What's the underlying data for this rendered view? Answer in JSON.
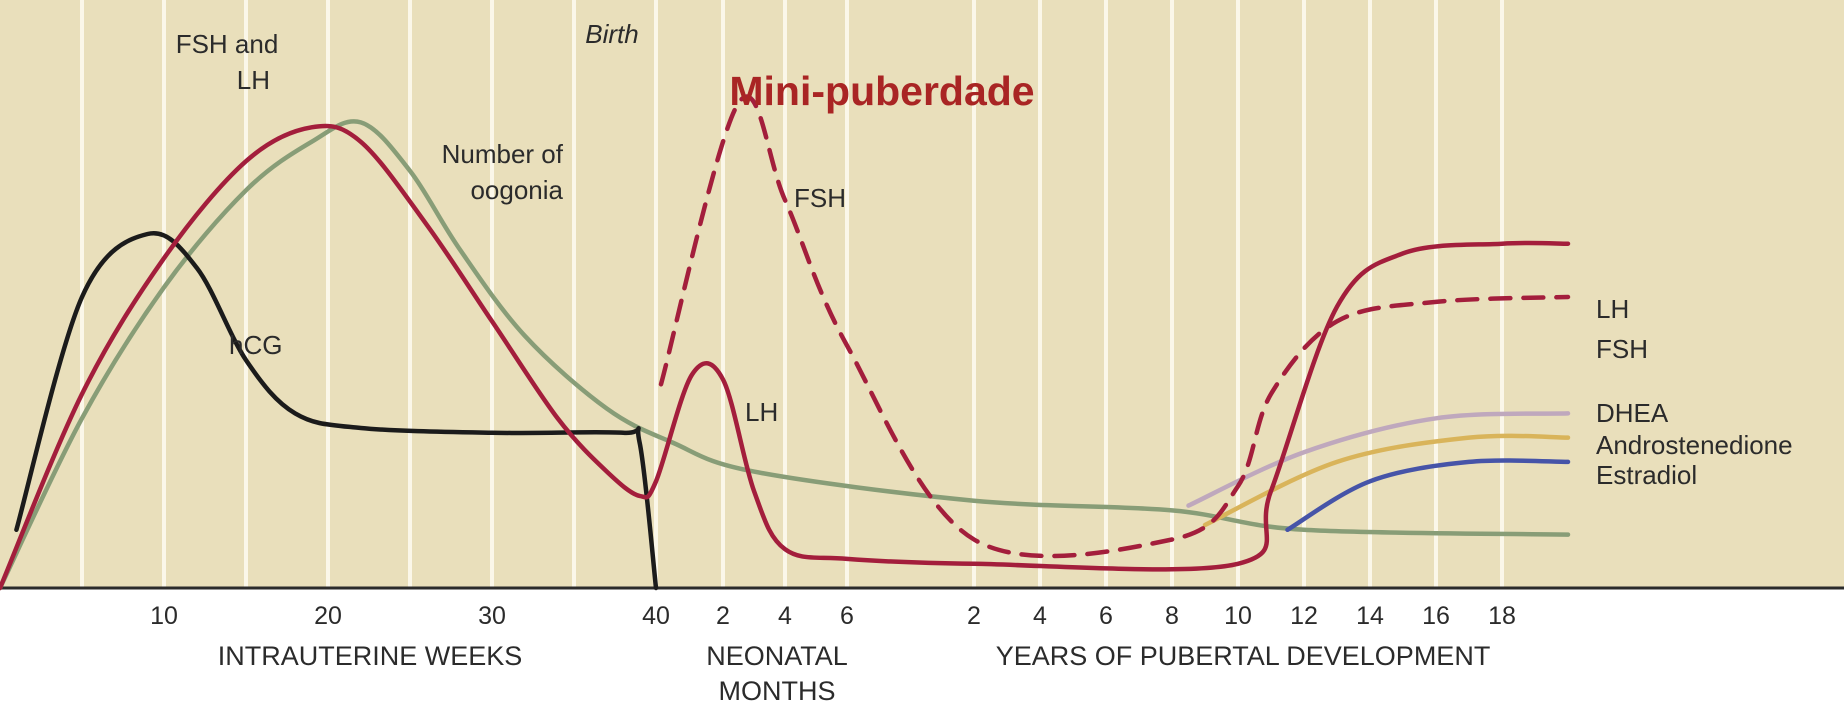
{
  "colors": {
    "background": "#e9dfbb",
    "gridline": "#fbf7e9",
    "hCG": "#1b1b1b",
    "FSH_and_LH": "#a31e3c",
    "oogonia": "#889d77",
    "DHEA": "#bfa8bd",
    "Androstenedione": "#d9b45a",
    "Estradiol": "#4654a8",
    "headline": "#a92524"
  },
  "headline": "Mini-puberdade",
  "annotations": {
    "birth": "Birth",
    "fsh_and_lh_line1": "FSH and",
    "fsh_and_lh_line2": "LH",
    "oogonia_line1": "Number of",
    "oogonia_line2": "oogonia",
    "hcg": "hCG",
    "neonatal_fsh": "FSH",
    "neonatal_lh": "LH"
  },
  "chart_data": {
    "type": "line",
    "y_axis": "unlabeled relative levels (approx. 0–100)",
    "grid": "vertical gridlines",
    "legend": "series labels at right end of lines",
    "sections": [
      {
        "name": "INTRAUTERINE WEEKS",
        "ticks": [
          "10",
          "20",
          "30",
          "40"
        ]
      },
      {
        "name_lines": [
          "NEONATAL",
          "MONTHS"
        ],
        "ticks": [
          "2",
          "4",
          "6"
        ]
      },
      {
        "name": "YEARS OF PUBERTAL DEVELOPMENT",
        "ticks": [
          "2",
          "4",
          "6",
          "8",
          "10",
          "12",
          "14",
          "16",
          "18"
        ]
      }
    ],
    "series": [
      {
        "name": "hCG",
        "style": "solid",
        "points": [
          [
            "w 1",
            12
          ],
          [
            "w 5",
            60
          ],
          [
            "w 9",
            73
          ],
          [
            "w 12",
            66
          ],
          [
            "w 15",
            47
          ],
          [
            "w 18",
            36
          ],
          [
            "w 22",
            33
          ],
          [
            "w 30",
            32
          ],
          [
            "w 38",
            32
          ],
          [
            "w 39",
            30
          ],
          [
            "w 40",
            0
          ]
        ]
      },
      {
        "name": "FSH and LH",
        "style": "solid",
        "points": [
          [
            "w 0",
            0
          ],
          [
            "w 5",
            40
          ],
          [
            "w 10",
            68
          ],
          [
            "w 15",
            88
          ],
          [
            "w 19",
            95
          ],
          [
            "w 22",
            92
          ],
          [
            "w 26",
            75
          ],
          [
            "w 30",
            55
          ],
          [
            "w 34",
            35
          ],
          [
            "w 37",
            24
          ],
          [
            "w 39",
            19
          ],
          [
            "w 40",
            22
          ],
          [
            "m 1",
            44
          ],
          [
            "m 2",
            43
          ],
          [
            "m 3",
            20
          ],
          [
            "m 4",
            8
          ],
          [
            "m 6",
            6
          ],
          [
            "y 2",
            5
          ],
          [
            "y 10",
            5
          ],
          [
            "y 11",
            20
          ],
          [
            "y 13",
            58
          ],
          [
            "y 15",
            69
          ],
          [
            "y 18",
            71
          ],
          [
            "y 20",
            71
          ]
        ]
      },
      {
        "name": "Number of oogonia",
        "style": "solid",
        "points": [
          [
            "w 0",
            0
          ],
          [
            "w 5",
            35
          ],
          [
            "w 10",
            62
          ],
          [
            "w 15",
            82
          ],
          [
            "w 19",
            92
          ],
          [
            "w 22",
            96
          ],
          [
            "w 25",
            86
          ],
          [
            "w 28",
            70
          ],
          [
            "w 32",
            52
          ],
          [
            "w 37",
            37
          ],
          [
            "w 41",
            30
          ],
          [
            "m 3",
            24
          ],
          [
            "y 2",
            18
          ],
          [
            "y 8",
            16
          ],
          [
            "y 12",
            12
          ],
          [
            "y 20",
            11
          ]
        ]
      },
      {
        "name": "FSH",
        "style": "dashed",
        "points": [
          [
            "m 0",
            42
          ],
          [
            "m 2.5",
            100
          ],
          [
            "m 4",
            80
          ],
          [
            "m 6",
            50
          ],
          [
            "y 2",
            10
          ],
          [
            "y 8",
            10
          ],
          [
            "y 10",
            21
          ],
          [
            "y 11",
            40
          ],
          [
            "y 13",
            55
          ],
          [
            "y 16",
            59
          ],
          [
            "y 20",
            60
          ]
        ]
      },
      {
        "name": "DHEA",
        "style": "solid",
        "points": [
          [
            "y 8.5",
            17
          ],
          [
            "y 12",
            28
          ],
          [
            "y 16",
            35
          ],
          [
            "y 20",
            36
          ]
        ]
      },
      {
        "name": "Androstenedione",
        "style": "solid",
        "points": [
          [
            "y 9",
            13
          ],
          [
            "y 13",
            26
          ],
          [
            "y 17",
            31
          ],
          [
            "y 20",
            31
          ]
        ]
      },
      {
        "name": "Estradiol",
        "style": "solid",
        "points": [
          [
            "y 11.5",
            12
          ],
          [
            "y 14",
            22
          ],
          [
            "y 17",
            26
          ],
          [
            "y 20",
            26
          ]
        ]
      }
    ]
  }
}
